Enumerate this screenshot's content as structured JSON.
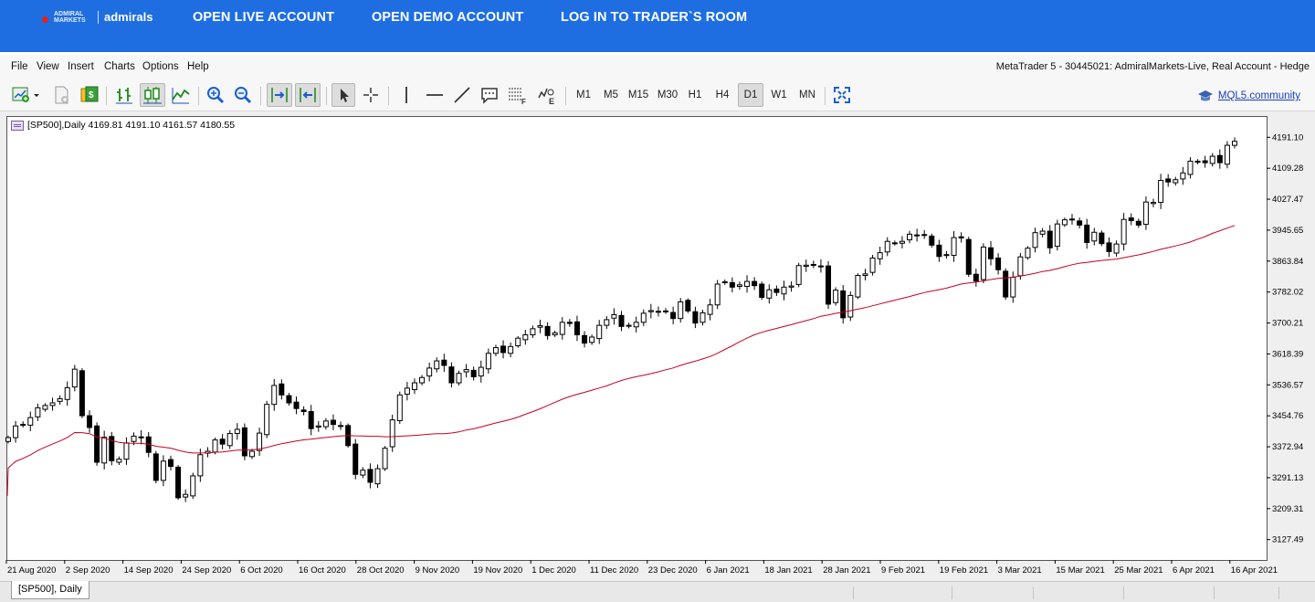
{
  "top_nav": {
    "logo_small": "ADMIRAL MARKETS",
    "brand": "admirals",
    "links": [
      "OPEN LIVE ACCOUNT",
      "OPEN DEMO ACCOUNT",
      "LOG IN TO TRADER`S ROOM"
    ]
  },
  "menu": {
    "items": [
      "File",
      "View",
      "Insert",
      "Charts",
      "Options",
      "Help"
    ],
    "window_title": "MetaTrader 5 - 30445021: AdmiralMarkets-Live, Real Account - Hedge"
  },
  "toolbar": {
    "timeframes": [
      "M1",
      "M5",
      "M15",
      "M30",
      "H1",
      "H4",
      "D1",
      "W1",
      "MN"
    ],
    "active_timeframe": "D1",
    "community_link": "MQL5.community"
  },
  "chart": {
    "info": "[SP500],Daily  4169.81 4191.10 4161.57 4180.55",
    "tab_label": "[SP500], Daily"
  },
  "chart_data": {
    "type": "candlestick",
    "symbol": "[SP500]",
    "timeframe": "Daily",
    "ohlc_current": {
      "open": 4169.81,
      "high": 4191.1,
      "low": 4161.57,
      "close": 4180.55
    },
    "y_ticks": [
      "4191.10",
      "4109.28",
      "4027.47",
      "3945.65",
      "3863.84",
      "3782.02",
      "3700.21",
      "3618.39",
      "3536.57",
      "3454.76",
      "3372.94",
      "3291.13",
      "3209.31",
      "3127.49"
    ],
    "x_ticks": [
      "21 Aug 2020",
      "2 Sep 2020",
      "14 Sep 2020",
      "24 Sep 2020",
      "6 Oct 2020",
      "16 Oct 2020",
      "28 Oct 2020",
      "9 Nov 2020",
      "19 Nov 2020",
      "1 Dec 2020",
      "11 Dec 2020",
      "23 Dec 2020",
      "6 Jan 2021",
      "18 Jan 2021",
      "28 Jan 2021",
      "9 Feb 2021",
      "19 Feb 2021",
      "3 Mar 2021",
      "15 Mar 2021",
      "25 Mar 2021",
      "6 Apr 2021",
      "16 Apr 2021"
    ],
    "ylim": [
      3076,
      4245
    ],
    "close_series": [
      3397,
      3428,
      3432,
      3450,
      3476,
      3482,
      3489,
      3500,
      3529,
      3578,
      3455,
      3424,
      3332,
      3398,
      3336,
      3340,
      3383,
      3401,
      3397,
      3358,
      3284,
      3335,
      3321,
      3238,
      3247,
      3296,
      3352,
      3361,
      3391,
      3380,
      3408,
      3419,
      3349,
      3361,
      3409,
      3485,
      3535,
      3510,
      3489,
      3474,
      3466,
      3421,
      3428,
      3441,
      3432,
      3429,
      3376,
      3300,
      3311,
      3279,
      3315,
      3369,
      3444,
      3510,
      3528,
      3542,
      3556,
      3581,
      3600,
      3588,
      3542,
      3567,
      3577,
      3558,
      3583,
      3620,
      3635,
      3622,
      3638,
      3660,
      3669,
      3685,
      3693,
      3667,
      3674,
      3702,
      3699,
      3669,
      3647,
      3663,
      3694,
      3709,
      3722,
      3691,
      3694,
      3702,
      3726,
      3733,
      3730,
      3732,
      3712,
      3756,
      3732,
      3700,
      3727,
      3748,
      3803,
      3809,
      3795,
      3801,
      3810,
      3799,
      3768,
      3788,
      3781,
      3795,
      3798,
      3852,
      3853,
      3855,
      3851,
      3750,
      3787,
      3714,
      3773,
      3826,
      3830,
      3872,
      3886,
      3916,
      3911,
      3916,
      3935,
      3932,
      3934,
      3906,
      3876,
      3881,
      3926,
      3925,
      3829,
      3811,
      3901,
      3870,
      3841,
      3769,
      3821,
      3875,
      3898,
      3939,
      3943,
      3899,
      3962,
      3973,
      3974,
      3959,
      3913,
      3940,
      3910,
      3889,
      3909,
      3974,
      3971,
      3959,
      4020,
      4019,
      4077,
      4073,
      4079,
      4097,
      4128,
      4125,
      4124,
      4141,
      4124,
      4170,
      4185
    ],
    "moving_average": {
      "period": 50,
      "color": "#c8001e"
    }
  }
}
